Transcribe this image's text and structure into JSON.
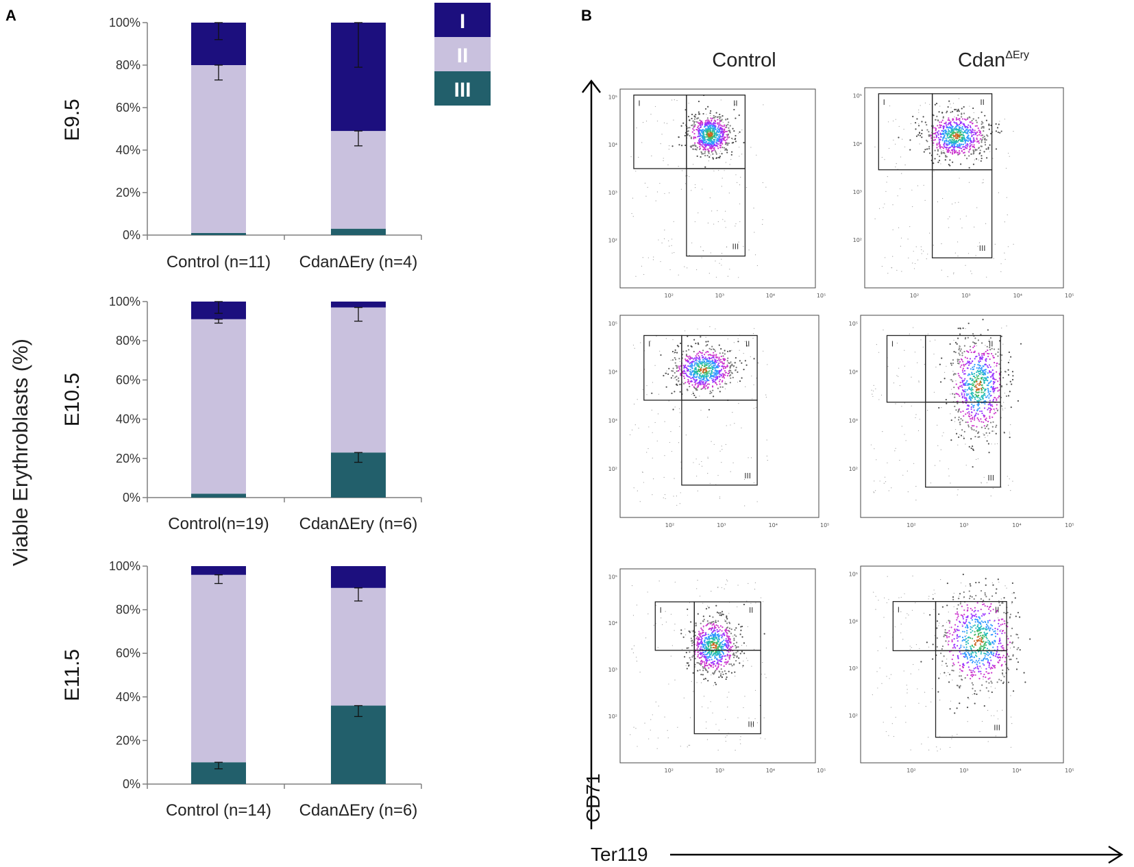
{
  "panels": {
    "a_letter": "A",
    "b_letter": "B"
  },
  "y_axis_title": "Viable Erythroblasts (%)",
  "colors": {
    "I": "#1c0f7e",
    "II": "#c9c1de",
    "III": "#225f6b",
    "axis": "#7f7f7f",
    "error_bar": "#111111"
  },
  "legend": [
    {
      "key": "I",
      "label": "I"
    },
    {
      "key": "II",
      "label": "II"
    },
    {
      "key": "III",
      "label": "III"
    }
  ],
  "chart_data": [
    {
      "type": "bar",
      "stacked": true,
      "stage": "E9.5",
      "categories": [
        "Control (n=11)",
        "CdanΔEry (n=4)"
      ],
      "series": [
        {
          "name": "III",
          "values": [
            1,
            3
          ]
        },
        {
          "name": "II",
          "values": [
            79,
            46
          ]
        },
        {
          "name": "I",
          "values": [
            20,
            51
          ]
        }
      ],
      "error_bars": [
        {
          "category": 0,
          "at": 80,
          "low": 73,
          "high": 80
        },
        {
          "category": 0,
          "at": 100,
          "low": 92,
          "high": 100
        },
        {
          "category": 1,
          "at": 49,
          "low": 42,
          "high": 49
        },
        {
          "category": 1,
          "at": 100,
          "low": 79,
          "high": 100
        }
      ],
      "ylim": [
        0,
        100
      ],
      "yticks": [
        "0%",
        "20%",
        "40%",
        "60%",
        "80%",
        "100%"
      ]
    },
    {
      "type": "bar",
      "stacked": true,
      "stage": "E10.5",
      "categories": [
        "Control(n=19)",
        "CdanΔEry (n=6)"
      ],
      "series": [
        {
          "name": "III",
          "values": [
            2,
            23
          ]
        },
        {
          "name": "II",
          "values": [
            89,
            74
          ]
        },
        {
          "name": "I",
          "values": [
            9,
            3
          ]
        }
      ],
      "error_bars": [
        {
          "category": 0,
          "at": 91,
          "low": 89,
          "high": 91
        },
        {
          "category": 0,
          "at": 100,
          "low": 94,
          "high": 100
        },
        {
          "category": 1,
          "at": 23,
          "low": 18,
          "high": 23
        },
        {
          "category": 1,
          "at": 97,
          "low": 90,
          "high": 97
        }
      ],
      "ylim": [
        0,
        100
      ],
      "yticks": [
        "0%",
        "20%",
        "40%",
        "60%",
        "80%",
        "100%"
      ]
    },
    {
      "type": "bar",
      "stacked": true,
      "stage": "E11.5",
      "categories": [
        "Control (n=14)",
        "CdanΔEry (n=6)"
      ],
      "series": [
        {
          "name": "III",
          "values": [
            10,
            36
          ]
        },
        {
          "name": "II",
          "values": [
            86,
            54
          ]
        },
        {
          "name": "I",
          "values": [
            4,
            10
          ]
        }
      ],
      "error_bars": [
        {
          "category": 0,
          "at": 10,
          "low": 7,
          "high": 10
        },
        {
          "category": 0,
          "at": 96,
          "low": 92,
          "high": 96
        },
        {
          "category": 1,
          "at": 36,
          "low": 31,
          "high": 36
        },
        {
          "category": 1,
          "at": 90,
          "low": 84,
          "high": 90
        }
      ],
      "ylim": [
        0,
        100
      ],
      "yticks": [
        "0%",
        "20%",
        "40%",
        "60%",
        "80%",
        "100%"
      ]
    }
  ],
  "flow": {
    "columns": [
      {
        "label": "Control",
        "sup": ""
      },
      {
        "label": "Cdan",
        "sup": "ΔEry"
      }
    ],
    "y_axis_label": "CD71",
    "x_axis_label": "Ter119",
    "gate_labels": [
      "I",
      "II",
      "III"
    ],
    "tick_labels": [
      "10²",
      "10³",
      "10⁴",
      "10⁵"
    ],
    "populations": [
      {
        "row": 0,
        "col": 0,
        "main": [
          0.46,
          0.23
        ],
        "spread": [
          0.1,
          0.09
        ]
      },
      {
        "row": 0,
        "col": 1,
        "main": [
          0.46,
          0.24
        ],
        "spread": [
          0.14,
          0.1
        ]
      },
      {
        "row": 1,
        "col": 0,
        "main": [
          0.42,
          0.27
        ],
        "spread": [
          0.14,
          0.1
        ]
      },
      {
        "row": 1,
        "col": 1,
        "main": [
          0.58,
          0.35
        ],
        "spread": [
          0.12,
          0.22
        ]
      },
      {
        "row": 2,
        "col": 0,
        "main": [
          0.48,
          0.4
        ],
        "spread": [
          0.11,
          0.13
        ]
      },
      {
        "row": 2,
        "col": 1,
        "main": [
          0.58,
          0.38
        ],
        "spread": [
          0.17,
          0.22
        ]
      }
    ]
  }
}
